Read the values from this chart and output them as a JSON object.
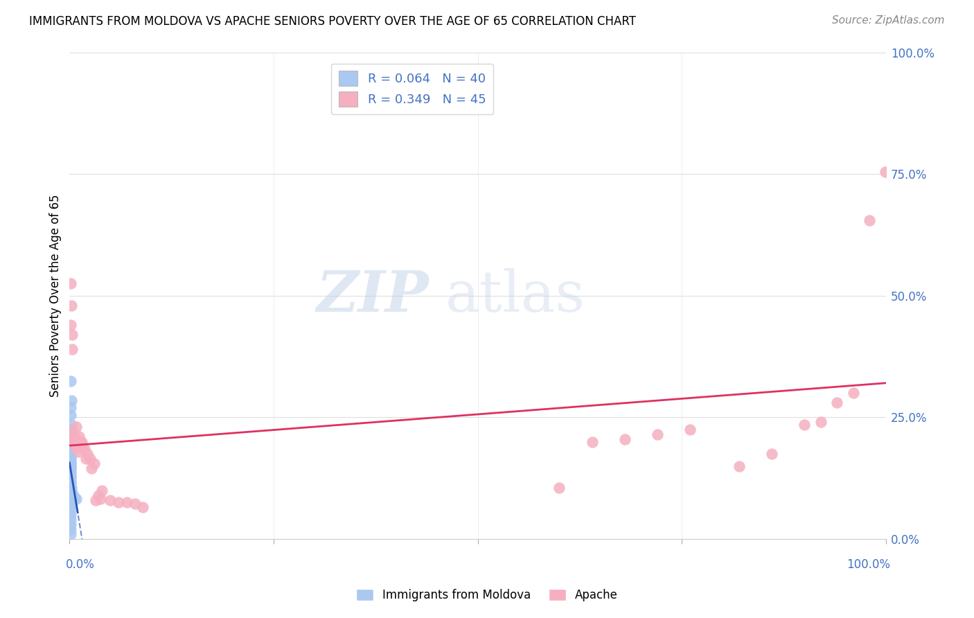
{
  "title": "IMMIGRANTS FROM MOLDOVA VS APACHE SENIORS POVERTY OVER THE AGE OF 65 CORRELATION CHART",
  "source": "Source: ZipAtlas.com",
  "ylabel": "Seniors Poverty Over the Age of 65",
  "blue_label": "Immigrants from Moldova",
  "pink_label": "Apache",
  "r_blue": "0.064",
  "n_blue": "40",
  "r_pink": "0.349",
  "n_pink": "45",
  "blue_fill": "#aac8f0",
  "pink_fill": "#f5afc0",
  "blue_line_color": "#2255bb",
  "pink_line_color": "#e03060",
  "axis_color": "#4472c4",
  "grid_color": "#d0d0d0",
  "ytick_vals": [
    0,
    0.25,
    0.5,
    0.75,
    1.0
  ],
  "ytick_labels": [
    "0.0%",
    "25.0%",
    "50.0%",
    "75.0%",
    "100.0%"
  ],
  "xlim": [
    0,
    1.0
  ],
  "ylim": [
    0,
    1.0
  ],
  "blue_x": [
    0.001,
    0.002,
    0.001,
    0.001,
    0.002,
    0.001,
    0.001,
    0.001,
    0.001,
    0.001,
    0.001,
    0.001,
    0.001,
    0.001,
    0.001,
    0.001,
    0.001,
    0.001,
    0.001,
    0.001,
    0.001,
    0.001,
    0.001,
    0.001,
    0.001,
    0.001,
    0.002,
    0.003,
    0.004,
    0.005,
    0.006,
    0.008,
    0.001,
    0.001,
    0.001,
    0.001,
    0.001,
    0.001,
    0.001,
    0.001
  ],
  "blue_y": [
    0.325,
    0.285,
    0.27,
    0.255,
    0.235,
    0.225,
    0.215,
    0.205,
    0.195,
    0.185,
    0.18,
    0.175,
    0.17,
    0.165,
    0.16,
    0.155,
    0.15,
    0.148,
    0.145,
    0.14,
    0.135,
    0.13,
    0.125,
    0.12,
    0.115,
    0.11,
    0.105,
    0.095,
    0.09,
    0.088,
    0.085,
    0.082,
    0.078,
    0.07,
    0.06,
    0.05,
    0.04,
    0.03,
    0.02,
    0.01
  ],
  "pink_x": [
    0.001,
    0.001,
    0.002,
    0.003,
    0.003,
    0.004,
    0.005,
    0.006,
    0.007,
    0.008,
    0.009,
    0.01,
    0.011,
    0.012,
    0.013,
    0.015,
    0.016,
    0.018,
    0.02,
    0.022,
    0.025,
    0.027,
    0.03,
    0.032,
    0.035,
    0.038,
    0.04,
    0.05,
    0.06,
    0.07,
    0.08,
    0.09,
    0.6,
    0.64,
    0.68,
    0.72,
    0.76,
    0.82,
    0.86,
    0.9,
    0.92,
    0.94,
    0.96,
    0.98,
    0.999
  ],
  "pink_y": [
    0.525,
    0.44,
    0.48,
    0.42,
    0.39,
    0.22,
    0.2,
    0.21,
    0.19,
    0.23,
    0.19,
    0.2,
    0.18,
    0.21,
    0.2,
    0.2,
    0.19,
    0.185,
    0.165,
    0.175,
    0.165,
    0.145,
    0.155,
    0.08,
    0.09,
    0.082,
    0.1,
    0.08,
    0.075,
    0.075,
    0.072,
    0.065,
    0.105,
    0.2,
    0.205,
    0.215,
    0.225,
    0.15,
    0.175,
    0.235,
    0.24,
    0.28,
    0.3,
    0.655,
    0.755
  ]
}
